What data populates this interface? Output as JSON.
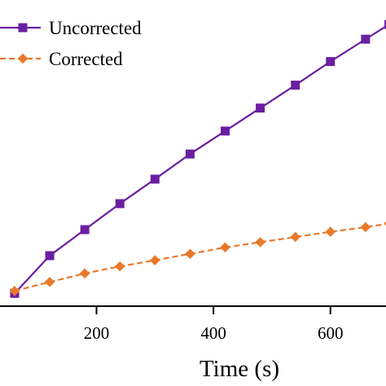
{
  "chart_data": {
    "type": "line",
    "xlabel": "Time (s)",
    "ylabel": "",
    "x_ticks": [
      200,
      400,
      600
    ],
    "xlim": [
      35,
      695
    ],
    "ylim": [
      0,
      10
    ],
    "grid": false,
    "legend_position": "top-left",
    "x": [
      60,
      120,
      180,
      240,
      300,
      360,
      420,
      480,
      540,
      600,
      660,
      700
    ],
    "series": [
      {
        "name": "Uncorrected",
        "color": "#6a1fa0",
        "marker": "square",
        "line_style": "solid",
        "values": [
          0.42,
          1.65,
          2.5,
          3.35,
          4.15,
          4.97,
          5.72,
          6.47,
          7.22,
          7.99,
          8.72,
          9.2
        ]
      },
      {
        "name": "Corrected",
        "color": "#e8792a",
        "marker": "diamond",
        "line_style": "dashed",
        "values": [
          0.5,
          0.79,
          1.07,
          1.3,
          1.5,
          1.71,
          1.92,
          2.09,
          2.26,
          2.43,
          2.58,
          2.7
        ]
      }
    ]
  }
}
